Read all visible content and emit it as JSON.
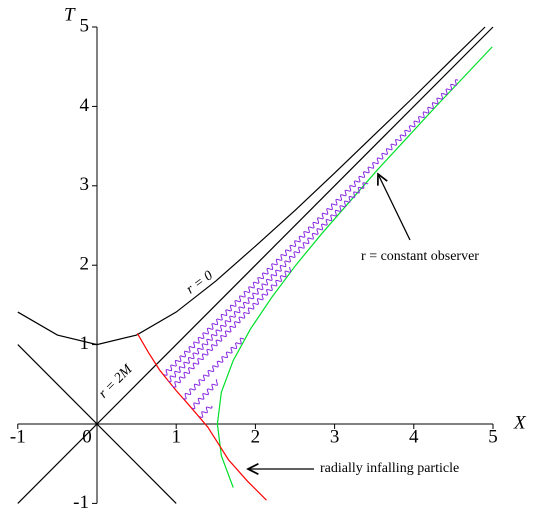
{
  "chart_data": {
    "type": "line",
    "x_label": "X",
    "y_label": "T",
    "xlim": [
      -1,
      5
    ],
    "ylim": [
      -1,
      5
    ],
    "xticks": [
      -1,
      0,
      1,
      2,
      3,
      4,
      5
    ],
    "yticks": [
      -1,
      1,
      2,
      3,
      4,
      5
    ],
    "series": [
      {
        "label": "r = 0",
        "color": "#000000",
        "x": [
          -1,
          -0.5,
          0,
          0.5,
          1,
          1.5,
          2,
          2.5,
          3,
          3.5,
          4,
          4.5,
          4.9
        ],
        "y": [
          1.41,
          1.12,
          1,
          1.12,
          1.41,
          1.8,
          2.24,
          2.69,
          3.16,
          3.64,
          4.12,
          4.61,
          5.0
        ]
      },
      {
        "label": "r = 2M",
        "color": "#000000",
        "x": [
          -1,
          5
        ],
        "y": [
          -1,
          5
        ]
      },
      {
        "color": "#000000",
        "x": [
          -1,
          1
        ],
        "y": [
          1,
          -1
        ]
      },
      {
        "color": "#00e02a",
        "x": [
          1.72,
          1.57,
          1.52,
          1.57,
          1.72,
          1.94,
          2.21,
          2.51,
          2.84,
          3.19,
          3.54,
          3.91,
          4.28,
          4.66,
          4.99
        ],
        "y": [
          -0.8,
          -0.4,
          0,
          0.4,
          0.8,
          1.2,
          1.6,
          2.0,
          2.4,
          2.8,
          3.2,
          3.6,
          4.0,
          4.4,
          4.75
        ]
      },
      {
        "color": "#ff0000",
        "x": [
          0.51,
          0.65,
          0.79,
          1.0,
          1.16,
          1.4,
          1.66,
          1.9,
          2.14
        ],
        "y": [
          1.14,
          0.9,
          0.68,
          0.42,
          0.24,
          -0.04,
          -0.45,
          -0.72,
          -0.96
        ]
      },
      {
        "style": "wavy",
        "color": "#8a2be2",
        "x": [
          0.85,
          4.56
        ],
        "y": [
          0.62,
          4.33
        ]
      },
      {
        "style": "wavy",
        "color": "#8a2be2",
        "x": [
          0.9,
          3.41
        ],
        "y": [
          0.54,
          3.05
        ]
      },
      {
        "style": "wavy",
        "color": "#8a2be2",
        "x": [
          0.96,
          2.45
        ],
        "y": [
          0.47,
          1.96
        ]
      },
      {
        "style": "wavy",
        "color": "#8a2be2",
        "x": [
          1.09,
          1.85
        ],
        "y": [
          0.32,
          1.08
        ]
      },
      {
        "style": "wavy",
        "color": "#8a2be2",
        "x": [
          1.2,
          1.54
        ],
        "y": [
          0.2,
          0.55
        ]
      },
      {
        "style": "wavy",
        "color": "#8a2be2",
        "x": [
          1.3,
          1.45
        ],
        "y": [
          0.09,
          0.24
        ]
      }
    ],
    "annotations": [
      "r = constant observer",
      "radially infalling particle"
    ]
  }
}
